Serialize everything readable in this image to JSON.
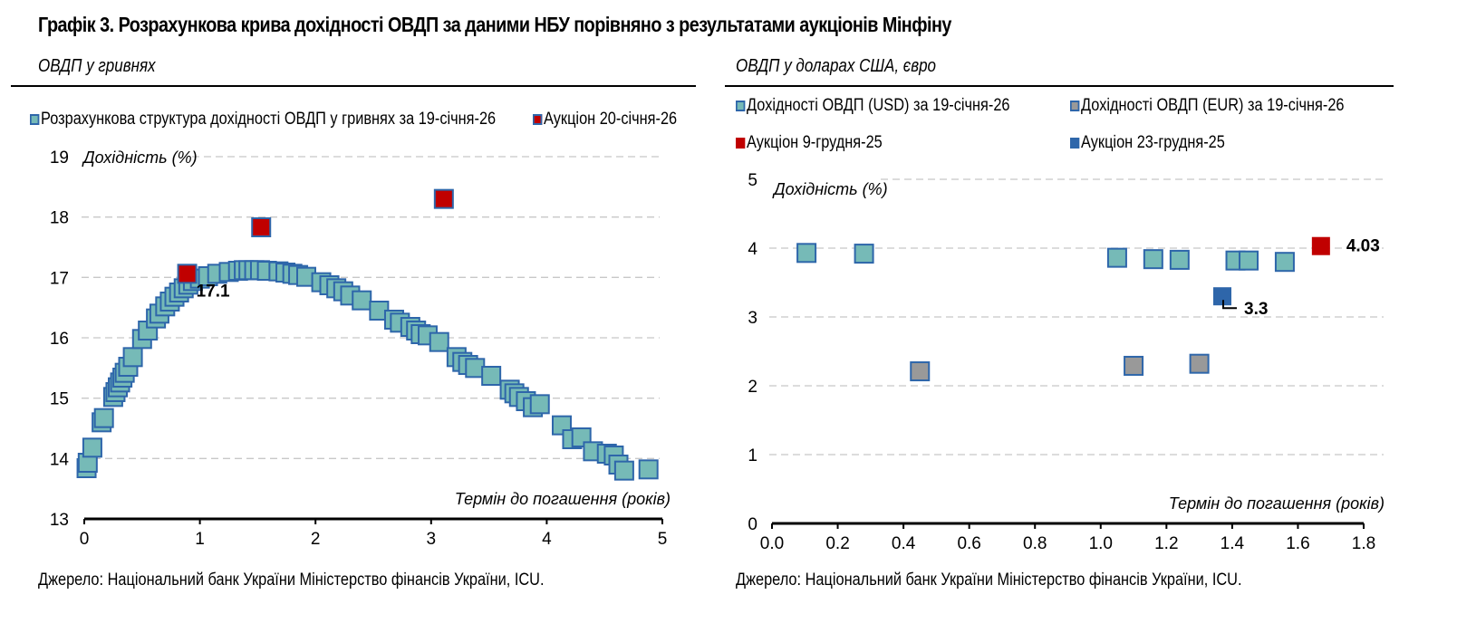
{
  "title": "Графік 3. Розрахункова крива дохідності ОВДП за даними НБУ порівняно з результатами аукціонів Мінфіну",
  "colors": {
    "teal_fill": "#76bab7",
    "marker_border": "#2e66aa",
    "red_fill": "#c00000",
    "gray_fill": "#999999",
    "blue_fill": "#2e66aa",
    "grid": "#c8c8c8"
  },
  "chart_data": [
    {
      "type": "scatter",
      "subtitle": "ОВДП у гривнях",
      "ylabel": "Дохідність (%)",
      "xlabel": "Термін до погашення (років)",
      "xlim": [
        0,
        5
      ],
      "ylim": [
        13,
        19
      ],
      "xticks": [
        "0",
        "1",
        "2",
        "3",
        "4",
        "5"
      ],
      "yticks": [
        "13",
        "14",
        "15",
        "16",
        "17",
        "18",
        "19"
      ],
      "grid": "horizontal dashed",
      "legend_position": "top",
      "source": "Джерело: Національний банк України Міністерство фінансів України, ICU.",
      "series": [
        {
          "name": "Розрахункова структура дохідності ОВДП у гривнях за 19-січня-26",
          "style": "teal",
          "points": [
            [
              0.02,
              13.84
            ],
            [
              0.03,
              13.93
            ],
            [
              0.07,
              14.18
            ],
            [
              0.15,
              14.6
            ],
            [
              0.17,
              14.67
            ],
            [
              0.25,
              15.02
            ],
            [
              0.27,
              15.1
            ],
            [
              0.29,
              15.18
            ],
            [
              0.31,
              15.26
            ],
            [
              0.33,
              15.34
            ],
            [
              0.35,
              15.42
            ],
            [
              0.38,
              15.52
            ],
            [
              0.42,
              15.68
            ],
            [
              0.5,
              15.98
            ],
            [
              0.55,
              16.12
            ],
            [
              0.62,
              16.32
            ],
            [
              0.65,
              16.4
            ],
            [
              0.7,
              16.52
            ],
            [
              0.74,
              16.6
            ],
            [
              0.78,
              16.68
            ],
            [
              0.82,
              16.75
            ],
            [
              0.86,
              16.82
            ],
            [
              0.9,
              16.88
            ],
            [
              0.94,
              16.94
            ],
            [
              1.0,
              16.98
            ],
            [
              1.07,
              17.02
            ],
            [
              1.15,
              17.06
            ],
            [
              1.25,
              17.09
            ],
            [
              1.33,
              17.11
            ],
            [
              1.38,
              17.12
            ],
            [
              1.42,
              17.12
            ],
            [
              1.47,
              17.12
            ],
            [
              1.52,
              17.12
            ],
            [
              1.58,
              17.11
            ],
            [
              1.68,
              17.1
            ],
            [
              1.74,
              17.08
            ],
            [
              1.8,
              17.06
            ],
            [
              1.85,
              17.04
            ],
            [
              1.92,
              17.01
            ],
            [
              2.05,
              16.92
            ],
            [
              2.12,
              16.87
            ],
            [
              2.18,
              16.82
            ],
            [
              2.24,
              16.77
            ],
            [
              2.3,
              16.7
            ],
            [
              2.4,
              16.62
            ],
            [
              2.55,
              16.45
            ],
            [
              2.68,
              16.3
            ],
            [
              2.73,
              16.25
            ],
            [
              2.82,
              16.18
            ],
            [
              2.87,
              16.12
            ],
            [
              2.91,
              16.06
            ],
            [
              2.97,
              16.04
            ],
            [
              3.07,
              15.93
            ],
            [
              3.22,
              15.68
            ],
            [
              3.27,
              15.6
            ],
            [
              3.32,
              15.55
            ],
            [
              3.38,
              15.5
            ],
            [
              3.52,
              15.37
            ],
            [
              3.68,
              15.14
            ],
            [
              3.72,
              15.08
            ],
            [
              3.76,
              15.02
            ],
            [
              3.82,
              14.95
            ],
            [
              3.88,
              14.85
            ],
            [
              3.94,
              14.9
            ],
            [
              4.13,
              14.55
            ],
            [
              4.22,
              14.32
            ],
            [
              4.3,
              14.35
            ],
            [
              4.4,
              14.12
            ],
            [
              4.52,
              14.08
            ],
            [
              4.58,
              14.05
            ],
            [
              4.62,
              13.9
            ],
            [
              4.67,
              13.8
            ],
            [
              4.88,
              13.82
            ]
          ]
        },
        {
          "name": "Аукціон 20-січня-26",
          "style": "red",
          "points": [
            [
              0.89,
              17.06
            ],
            [
              1.53,
              17.83
            ],
            [
              3.11,
              18.3
            ]
          ]
        }
      ],
      "annotations": [
        {
          "text": "17.1",
          "x": 0.89,
          "y": 17.1
        }
      ]
    },
    {
      "type": "scatter",
      "subtitle": "ОВДП у доларах США, євро",
      "ylabel": "Дохідність (%)",
      "xlabel": "Термін до погашення (років)",
      "xlim": [
        0.0,
        1.8
      ],
      "ylim": [
        0,
        5
      ],
      "xticks": [
        "0.0",
        "0.2",
        "0.4",
        "0.6",
        "0.8",
        "1.0",
        "1.2",
        "1.4",
        "1.6",
        "1.8"
      ],
      "yticks": [
        "0",
        "1",
        "2",
        "3",
        "4",
        "5"
      ],
      "grid": "horizontal dashed",
      "legend_position": "top",
      "source": "Джерело: Національний банк України Міністерство фінансів України, ICU.",
      "series": [
        {
          "name": "Дохідності ОВДП (USD) за 19-січня-26",
          "style": "teal",
          "points": [
            [
              0.105,
              3.93
            ],
            [
              0.28,
              3.92
            ],
            [
              1.05,
              3.86
            ],
            [
              1.16,
              3.84
            ],
            [
              1.24,
              3.83
            ],
            [
              1.41,
              3.82
            ],
            [
              1.45,
              3.82
            ],
            [
              1.56,
              3.8
            ]
          ]
        },
        {
          "name": "Дохідності ОВДП (EUR) за 19-січня-26",
          "style": "gray",
          "points": [
            [
              0.45,
              2.21
            ],
            [
              1.1,
              2.29
            ],
            [
              1.3,
              2.32
            ]
          ]
        },
        {
          "name": "Аукціон 9-грудня-25",
          "style": "red_plain",
          "points": [
            [
              1.67,
              4.03
            ]
          ]
        },
        {
          "name": "Аукціон 23-грудня-25",
          "style": "blue_plain",
          "points": [
            [
              1.37,
              3.3
            ]
          ]
        }
      ],
      "annotations": [
        {
          "text": "4.03",
          "x": 1.67,
          "y": 4.03
        },
        {
          "text": "3.3",
          "x": 1.37,
          "y": 3.3
        }
      ]
    }
  ]
}
